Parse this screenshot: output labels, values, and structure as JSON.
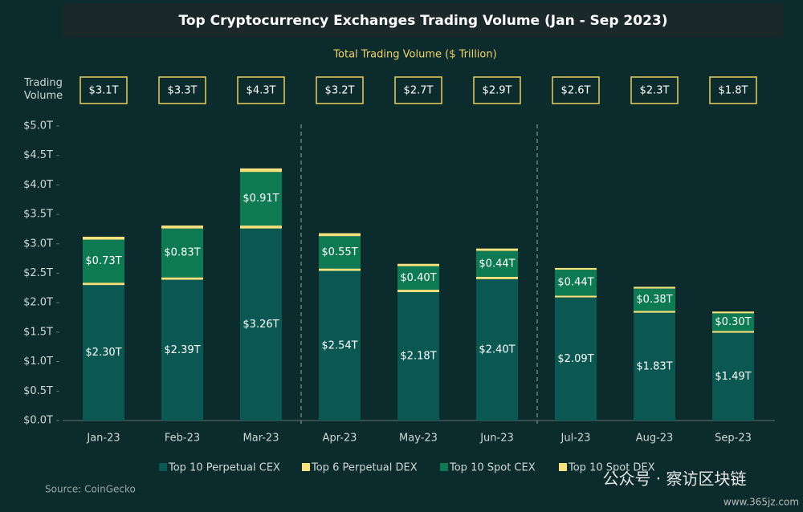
{
  "chart_data": {
    "type": "bar",
    "stacked": true,
    "title": "Top Cryptocurrency Exchanges Trading Volume (Jan - Sep 2023)",
    "subtitle": "Total Trading Volume ($ Trillion)",
    "categories": [
      "Jan-23",
      "Feb-23",
      "Mar-23",
      "Apr-23",
      "May-23",
      "Jun-23",
      "Jul-23",
      "Aug-23",
      "Sep-23"
    ],
    "series": [
      {
        "name": "Top 10 Perpetual CEX",
        "color": "#0b5752",
        "values": [
          2.3,
          2.39,
          3.26,
          2.54,
          2.18,
          2.4,
          2.09,
          1.83,
          1.49
        ],
        "value_labels": [
          "$2.30T",
          "$2.39T",
          "$3.26T",
          "$2.54T",
          "$2.18T",
          "$2.40T",
          "$2.09T",
          "$1.83T",
          "$1.49T"
        ]
      },
      {
        "name": "Top 6 Perpetual DEX",
        "color": "#f5e27c",
        "values": [
          0.04,
          0.04,
          0.05,
          0.04,
          0.04,
          0.04,
          0.03,
          0.03,
          0.03
        ]
      },
      {
        "name": "Top 10 Spot CEX",
        "color": "#0e7a53",
        "values": [
          0.73,
          0.83,
          0.91,
          0.55,
          0.4,
          0.44,
          0.44,
          0.38,
          0.3
        ],
        "value_labels": [
          "$0.73T",
          "$0.83T",
          "$0.91T",
          "$0.55T",
          "$0.40T",
          "$0.44T",
          "$0.44T",
          "$0.38T",
          "$0.30T"
        ]
      },
      {
        "name": "Top 10 Spot DEX",
        "color": "#f5e27c",
        "values": [
          0.05,
          0.05,
          0.06,
          0.05,
          0.04,
          0.04,
          0.03,
          0.03,
          0.03
        ]
      }
    ],
    "totals": {
      "label": "Trading Volume",
      "values": [
        3.1,
        3.3,
        4.3,
        3.2,
        2.7,
        2.9,
        2.6,
        2.3,
        1.8
      ],
      "value_labels": [
        "$3.1T",
        "$3.3T",
        "$4.3T",
        "$3.2T",
        "$2.7T",
        "$2.9T",
        "$2.6T",
        "$2.3T",
        "$1.8T"
      ]
    },
    "ylim": [
      0,
      5
    ],
    "yticks": [
      {
        "value": 0,
        "label": "$0.0T"
      },
      {
        "value": 0.5,
        "label": "$0.5T"
      },
      {
        "value": 1,
        "label": "$1.0T"
      },
      {
        "value": 1.5,
        "label": "$1.5T"
      },
      {
        "value": 2,
        "label": "$2.0T"
      },
      {
        "value": 2.5,
        "label": "$2.5T"
      },
      {
        "value": 3,
        "label": "$3.0T"
      },
      {
        "value": 3.5,
        "label": "$3.5T"
      },
      {
        "value": 4,
        "label": "$4.0T"
      },
      {
        "value": 4.5,
        "label": "$4.5T"
      },
      {
        "value": 5,
        "label": "$5.0T"
      }
    ],
    "grid": false,
    "source": "Source: CoinGecko",
    "watermark": "公众号 · 察访区块链",
    "watermark_url": "www.365jz.com"
  }
}
